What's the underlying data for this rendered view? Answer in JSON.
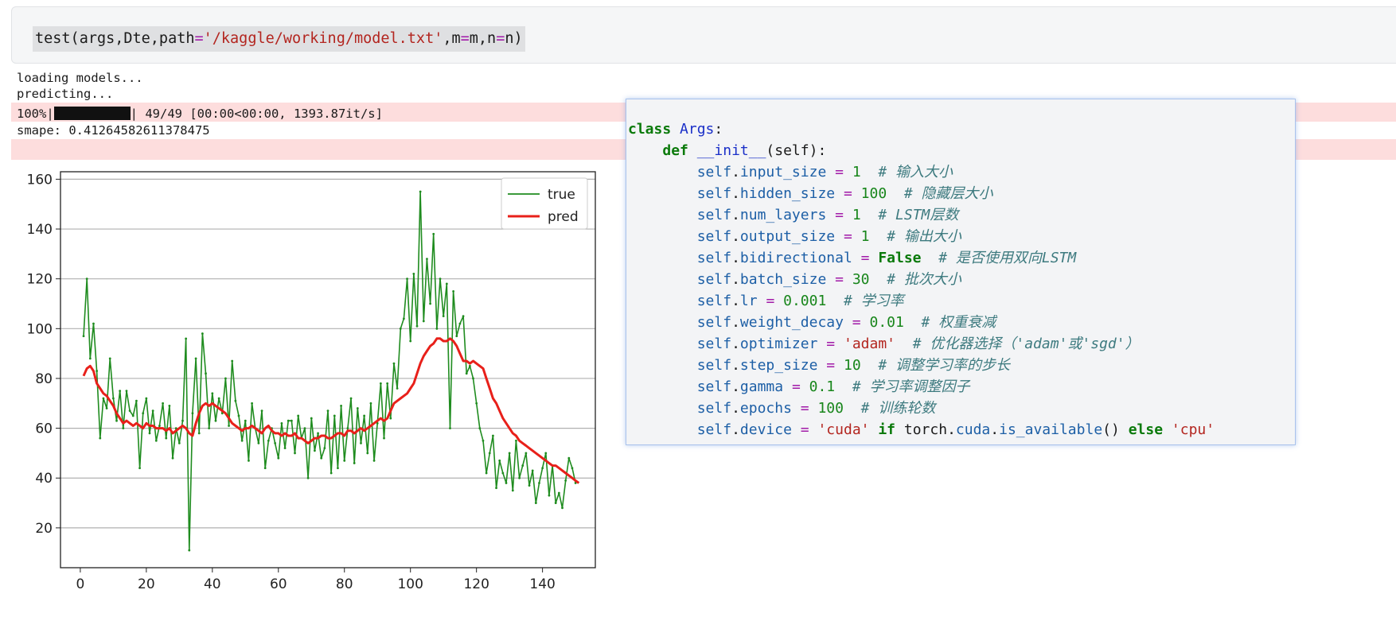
{
  "input_cell": {
    "code_parts": [
      "test(args,Dte,path",
      "=",
      "'/kaggle/working/model.txt'",
      ",m",
      "=",
      "m,n",
      "=",
      "n)"
    ]
  },
  "output": {
    "lines": [
      "loading models...",
      "predicting..."
    ],
    "progress": {
      "prefix": "100%|",
      "bar_fraction": 1.0,
      "suffix": "| 49/49 [00:00<00:00, 1393.87it/s]"
    },
    "smape": "smape: 0.41264582611378475"
  },
  "popup": {
    "class_kw": "class",
    "class_name": "Args",
    "def_kw": "def",
    "init_name": "__init__",
    "init_params": "(self):",
    "self_word": "self",
    "attrs": [
      {
        "name": "input_size",
        "value": "1",
        "kind": "num",
        "comment": "# 输入大小"
      },
      {
        "name": "hidden_size",
        "value": "100",
        "kind": "num",
        "comment": "# 隐藏层大小"
      },
      {
        "name": "num_layers",
        "value": "1",
        "kind": "num",
        "comment": "# LSTM层数"
      },
      {
        "name": "output_size",
        "value": "1",
        "kind": "num",
        "comment": "# 输出大小"
      },
      {
        "name": "bidirectional",
        "value": "False",
        "kind": "kw",
        "comment": "# 是否使用双向LSTM"
      },
      {
        "name": "batch_size",
        "value": "30",
        "kind": "num",
        "comment": "# 批次大小"
      },
      {
        "name": "lr",
        "value": "0.001",
        "kind": "num",
        "comment": "# 学习率"
      },
      {
        "name": "weight_decay",
        "value": "0.01",
        "kind": "num",
        "comment": "# 权重衰减"
      },
      {
        "name": "optimizer",
        "value": "'adam'",
        "kind": "str",
        "comment": "# 优化器选择（'adam'或'sgd'）"
      },
      {
        "name": "step_size",
        "value": "10",
        "kind": "num",
        "comment": "# 调整学习率的步长"
      },
      {
        "name": "gamma",
        "value": "0.1",
        "kind": "num",
        "comment": "# 学习率调整因子"
      },
      {
        "name": "epochs",
        "value": "100",
        "kind": "num",
        "comment": "# 训练轮数"
      }
    ],
    "device_line": {
      "name": "device",
      "v1": "'cuda'",
      "if_kw": "if",
      "torch": "torch",
      "cuda": "cuda",
      "fn": "is_available",
      "call": "()",
      "else_kw": "else",
      "v2": "'cpu'"
    }
  },
  "chart_data": {
    "type": "line",
    "xlim": [
      -6,
      156
    ],
    "ylim": [
      4,
      163
    ],
    "x_ticks": [
      0,
      20,
      40,
      60,
      80,
      100,
      120,
      140
    ],
    "y_ticks": [
      20,
      40,
      60,
      80,
      100,
      120,
      140,
      160
    ],
    "grid": "horizontal",
    "legend": "top-right",
    "colors": {
      "true": "#1f8c1f",
      "pred": "#e8201a"
    },
    "series": [
      {
        "name": "true",
        "values": [
          97,
          120,
          88,
          102,
          83,
          56,
          72,
          68,
          88,
          72,
          63,
          75,
          60,
          75,
          67,
          65,
          71,
          44,
          66,
          72,
          58,
          67,
          55,
          61,
          70,
          56,
          69,
          48,
          60,
          54,
          63,
          96,
          11,
          66,
          88,
          58,
          98,
          82,
          60,
          74,
          63,
          72,
          66,
          80,
          61,
          87,
          71,
          65,
          55,
          63,
          47,
          70,
          60,
          54,
          67,
          44,
          55,
          60,
          54,
          48,
          62,
          52,
          63,
          63,
          50,
          65,
          56,
          60,
          40,
          64,
          51,
          58,
          48,
          52,
          67,
          42,
          65,
          44,
          69,
          47,
          60,
          72,
          46,
          68,
          54,
          65,
          50,
          70,
          47,
          62,
          78,
          56,
          78,
          64,
          86,
          76,
          100,
          104,
          120,
          95,
          122,
          101,
          155,
          103,
          128,
          110,
          138,
          100,
          120,
          105,
          118,
          60,
          115,
          97,
          102,
          105,
          82,
          85,
          80,
          70,
          60,
          55,
          42,
          50,
          57,
          36,
          47,
          42,
          38,
          50,
          35,
          55,
          40,
          45,
          50,
          37,
          43,
          30,
          38,
          44,
          50,
          33,
          45,
          30,
          34,
          28,
          39,
          48,
          44,
          38
        ],
        "note_precision": "approximate"
      },
      {
        "name": "pred",
        "values": [
          81,
          84,
          85,
          83,
          78,
          76,
          74,
          73,
          71,
          69,
          66,
          64,
          62,
          63,
          62,
          61,
          62,
          61,
          60,
          62,
          61,
          61,
          60,
          60,
          60,
          59,
          60,
          58,
          59,
          60,
          61,
          60,
          58,
          57,
          62,
          66,
          69,
          70,
          69,
          70,
          69,
          68,
          67,
          66,
          64,
          62,
          61,
          60,
          59,
          60,
          60,
          61,
          60,
          59,
          58,
          60,
          61,
          59,
          58,
          58,
          57,
          58,
          57,
          57,
          58,
          56,
          56,
          55,
          54,
          55,
          56,
          56,
          57,
          57,
          56,
          56,
          57,
          58,
          58,
          57,
          59,
          59,
          58,
          59,
          60,
          59,
          60,
          61,
          62,
          63,
          64,
          63,
          64,
          67,
          70,
          71,
          72,
          73,
          74,
          76,
          78,
          82,
          86,
          89,
          91,
          93,
          94,
          96,
          96,
          95,
          95,
          96,
          95,
          93,
          90,
          87,
          87,
          86,
          87,
          86,
          85,
          84,
          80,
          76,
          72,
          70,
          67,
          64,
          62,
          60,
          58,
          57,
          55,
          54,
          53,
          52,
          51,
          50,
          49,
          48,
          47,
          46,
          45,
          45,
          44,
          43,
          42,
          41,
          40,
          39,
          38
        ]
      }
    ]
  }
}
